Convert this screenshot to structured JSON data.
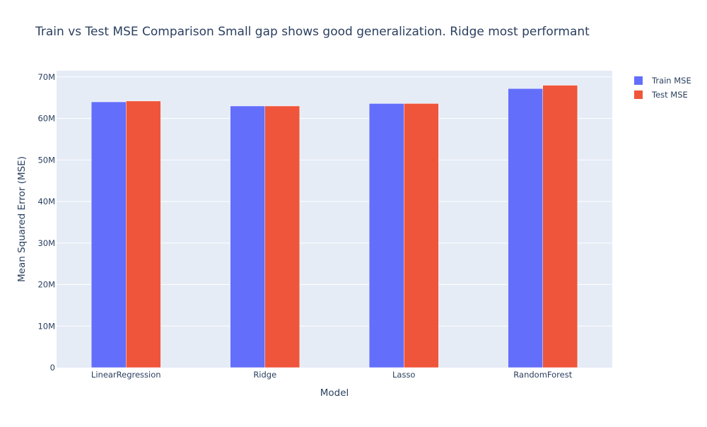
{
  "chart_data": {
    "type": "bar",
    "title": "Train vs Test MSE Comparison Small gap shows good generalization. Ridge most performant",
    "xlabel": "Model",
    "ylabel": "Mean Squared Error (MSE)",
    "categories": [
      "LinearRegression",
      "Ridge",
      "Lasso",
      "RandomForest"
    ],
    "series": [
      {
        "name": "Train MSE",
        "color": "#636efa",
        "values": [
          64000000,
          63000000,
          63600000,
          67200000
        ]
      },
      {
        "name": "Test MSE",
        "color": "#ef553b",
        "values": [
          64200000,
          63000000,
          63600000,
          68000000
        ]
      }
    ],
    "ylim": [
      0,
      71500000
    ],
    "yticks": [
      {
        "value": 0,
        "label": "0"
      },
      {
        "value": 10000000,
        "label": "10M"
      },
      {
        "value": 20000000,
        "label": "20M"
      },
      {
        "value": 30000000,
        "label": "30M"
      },
      {
        "value": 40000000,
        "label": "40M"
      },
      {
        "value": 50000000,
        "label": "50M"
      },
      {
        "value": 60000000,
        "label": "60M"
      },
      {
        "value": 70000000,
        "label": "70M"
      }
    ],
    "grid": true,
    "legend_position": "top-right",
    "plot_background": "#e5ecf6"
  }
}
